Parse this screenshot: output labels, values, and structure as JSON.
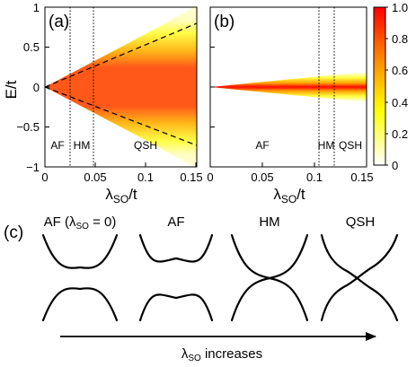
{
  "panel_a": {
    "label": "(a)",
    "ylabel": "E/t",
    "xlabel_main": "λ",
    "xlabel_sub": "SO",
    "xlabel_tail": "/t",
    "xticks": [
      "0",
      "0.05",
      "0.1",
      "0.15"
    ],
    "yticks": [
      "1",
      "0.5",
      "0",
      "−0.5",
      "−1"
    ],
    "phases": [
      "AF",
      "HM",
      "QSH"
    ]
  },
  "panel_b": {
    "label": "(b)",
    "xlabel_main": "λ",
    "xlabel_sub": "SO",
    "xlabel_tail": "/t",
    "xticks": [
      "0",
      "0.05",
      "0.1",
      "0.15"
    ],
    "phases": [
      "AF",
      "HM",
      "QSH"
    ]
  },
  "colorbar": {
    "ticks": [
      "1.0",
      "0.8",
      "0.6",
      "0.4",
      "0.2",
      "0"
    ],
    "colors": [
      "#ffffff",
      "#ffff00",
      "#ff8c00",
      "#ff0000"
    ]
  },
  "panel_c": {
    "label": "(c)",
    "band_labels": [
      {
        "main": "AF (λ",
        "sub": "SO",
        "tail": " = 0)"
      },
      {
        "main": "AF",
        "sub": "",
        "tail": ""
      },
      {
        "main": "HM",
        "sub": "",
        "tail": ""
      },
      {
        "main": "QSH",
        "sub": "",
        "tail": ""
      }
    ],
    "arrow_main": "λ",
    "arrow_sub": "SO",
    "arrow_tail": " increases"
  }
}
